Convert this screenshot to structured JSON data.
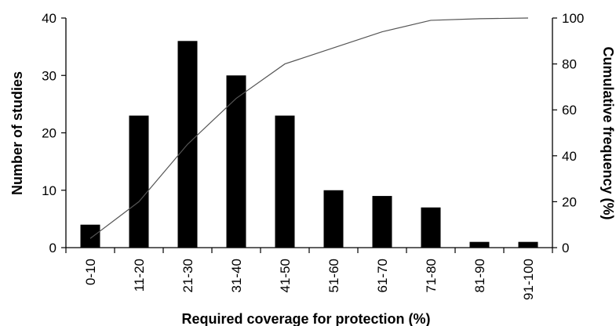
{
  "chart_data": {
    "type": "bar",
    "categories": [
      "0-10",
      "11-20",
      "21-30",
      "31-40",
      "41-50",
      "51-60",
      "61-70",
      "71-80",
      "81-90",
      "91-100"
    ],
    "series": [
      {
        "type": "bar",
        "axis": "left",
        "values": [
          4,
          23,
          36,
          30,
          23,
          10,
          9,
          7,
          1,
          1
        ]
      },
      {
        "type": "line",
        "axis": "right",
        "values": [
          4,
          20,
          45,
          65,
          80,
          87,
          94,
          99,
          99.7,
          100
        ]
      }
    ],
    "xlabel": "Required coverage for protection (%)",
    "ylabel": "Number of studies",
    "y2label": "Cumulative frequency (%)",
    "ylim": [
      0,
      40
    ],
    "y2lim": [
      0,
      100
    ],
    "yticks": [
      "0",
      "10",
      "20",
      "30",
      "40"
    ],
    "y2ticks": [
      "0",
      "20",
      "40",
      "60",
      "80",
      "100"
    ],
    "grid": false,
    "legend": "none",
    "colors": {
      "bar": "#000000",
      "line": "#555555",
      "axis": "#000000"
    }
  }
}
